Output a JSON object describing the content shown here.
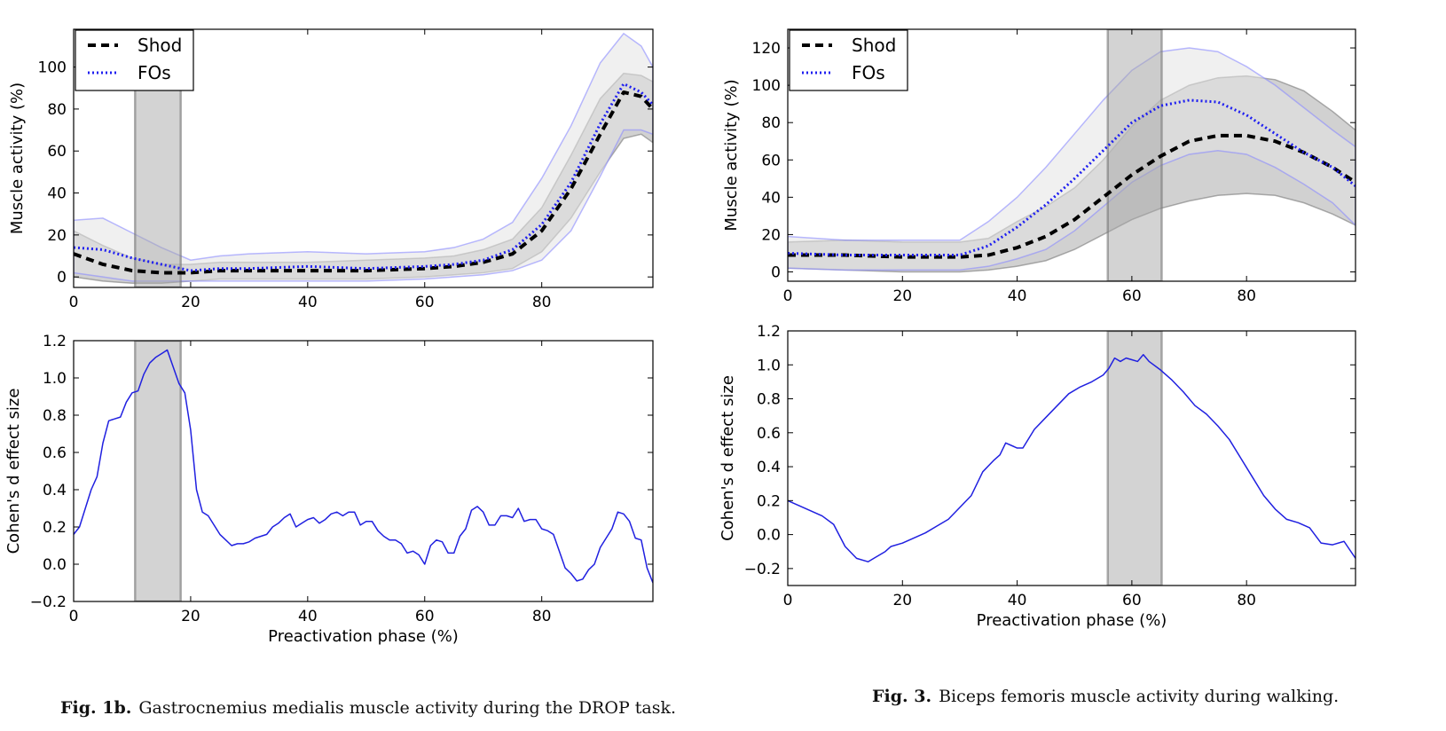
{
  "chart_data": [
    {
      "id": "fig1b-top",
      "type": "line",
      "ylabel": "Muscle activity (%)",
      "xlabel": "",
      "xlim": [
        0,
        99
      ],
      "ylim": [
        -5,
        118
      ],
      "xticks": [
        0,
        20,
        40,
        60,
        80
      ],
      "yticks": [
        0,
        20,
        40,
        60,
        80,
        100
      ],
      "highlight": [
        10.5,
        18.3
      ],
      "legend": {
        "position": "top-left",
        "entries": [
          "Shod",
          "FOs"
        ]
      },
      "series": [
        {
          "name": "Shod",
          "style": "dashed",
          "color": "#000000",
          "x": [
            0,
            5,
            10,
            15,
            20,
            25,
            30,
            40,
            50,
            60,
            65,
            70,
            75,
            80,
            85,
            90,
            94,
            97,
            99
          ],
          "values": [
            11,
            6,
            3,
            2,
            2,
            3,
            3,
            3,
            3,
            4,
            5,
            7,
            11,
            22,
            42,
            68,
            88,
            86,
            80
          ],
          "band_lower": [
            0,
            -2,
            -3,
            -3,
            -2,
            -1,
            -1,
            -1,
            -1,
            0,
            1,
            2,
            4,
            12,
            28,
            50,
            66,
            68,
            64
          ],
          "band_upper": [
            22,
            15,
            9,
            6,
            6,
            7,
            7,
            7,
            8,
            9,
            10,
            13,
            18,
            33,
            58,
            85,
            97,
            96,
            93
          ]
        },
        {
          "name": "FOs",
          "style": "dotted",
          "color": "#1f1ff0",
          "x": [
            0,
            5,
            10,
            15,
            20,
            25,
            30,
            40,
            50,
            60,
            65,
            70,
            75,
            80,
            85,
            90,
            94,
            97,
            99
          ],
          "values": [
            14,
            13,
            9,
            6,
            3,
            4,
            4,
            5,
            4,
            5,
            6,
            8,
            13,
            25,
            45,
            73,
            92,
            88,
            82
          ],
          "band_lower": [
            2,
            0,
            -2,
            -2,
            -2,
            -2,
            -2,
            -2,
            -2,
            -1,
            0,
            1,
            3,
            8,
            22,
            48,
            70,
            70,
            68
          ],
          "band_upper": [
            27,
            28,
            21,
            14,
            8,
            10,
            11,
            12,
            11,
            12,
            14,
            18,
            26,
            47,
            72,
            102,
            116,
            110,
            100
          ]
        }
      ]
    },
    {
      "id": "fig1b-bottom",
      "type": "line",
      "ylabel": "Cohen's d effect size",
      "xlabel": "Preactivation phase (%)",
      "xlim": [
        0,
        99
      ],
      "ylim": [
        -0.2,
        1.2
      ],
      "xticks": [
        0,
        20,
        40,
        60,
        80
      ],
      "yticks": [
        -0.2,
        0.0,
        0.2,
        0.4,
        0.6,
        0.8,
        1.0,
        1.2
      ],
      "highlight": [
        10.5,
        18.3
      ],
      "series": [
        {
          "name": "",
          "style": "solid",
          "color": "#2020e0",
          "x": [
            0,
            1,
            2,
            3,
            4,
            5,
            6,
            7,
            8,
            9,
            10,
            11,
            12,
            13,
            14,
            15,
            16,
            17,
            18,
            19,
            20,
            21,
            22,
            23,
            24,
            25,
            26,
            27,
            28,
            29,
            30,
            31,
            32,
            33,
            34,
            35,
            36,
            37,
            38,
            39,
            40,
            41,
            42,
            43,
            44,
            45,
            46,
            47,
            48,
            49,
            50,
            51,
            52,
            53,
            54,
            55,
            56,
            57,
            58,
            59,
            60,
            61,
            62,
            63,
            64,
            65,
            66,
            67,
            68,
            69,
            70,
            71,
            72,
            73,
            74,
            75,
            76,
            77,
            78,
            79,
            80,
            81,
            82,
            83,
            84,
            85,
            86,
            87,
            88,
            89,
            90,
            91,
            92,
            93,
            94,
            95,
            96,
            97,
            98,
            99
          ],
          "values": [
            0.16,
            0.2,
            0.3,
            0.4,
            0.47,
            0.65,
            0.77,
            0.78,
            0.79,
            0.87,
            0.92,
            0.93,
            1.02,
            1.08,
            1.11,
            1.13,
            1.15,
            1.06,
            0.97,
            0.92,
            0.72,
            0.4,
            0.28,
            0.26,
            0.21,
            0.16,
            0.13,
            0.1,
            0.11,
            0.11,
            0.12,
            0.14,
            0.15,
            0.16,
            0.2,
            0.22,
            0.25,
            0.27,
            0.2,
            0.22,
            0.24,
            0.25,
            0.22,
            0.24,
            0.27,
            0.28,
            0.26,
            0.28,
            0.28,
            0.21,
            0.23,
            0.23,
            0.18,
            0.15,
            0.13,
            0.13,
            0.11,
            0.06,
            0.07,
            0.05,
            0.0,
            0.1,
            0.13,
            0.12,
            0.06,
            0.06,
            0.15,
            0.19,
            0.29,
            0.31,
            0.28,
            0.21,
            0.21,
            0.26,
            0.26,
            0.25,
            0.3,
            0.23,
            0.24,
            0.24,
            0.19,
            0.18,
            0.16,
            0.07,
            -0.02,
            -0.05,
            -0.09,
            -0.08,
            -0.03,
            0.0,
            0.09,
            0.14,
            0.19,
            0.28,
            0.27,
            0.23,
            0.14,
            0.13,
            -0.02,
            -0.1
          ]
        }
      ]
    },
    {
      "id": "fig3-top",
      "type": "line",
      "ylabel": "Muscle activity (%)",
      "xlabel": "",
      "xlim": [
        0,
        99
      ],
      "ylim": [
        -5,
        130
      ],
      "xticks": [
        0,
        20,
        40,
        60,
        80
      ],
      "yticks": [
        0,
        20,
        40,
        60,
        80,
        100,
        120
      ],
      "highlight": [
        55.8,
        65.2
      ],
      "legend": {
        "position": "top-left",
        "entries": [
          "Shod",
          "FOs"
        ]
      },
      "series": [
        {
          "name": "Shod",
          "style": "dashed",
          "color": "#000000",
          "x": [
            0,
            10,
            20,
            30,
            35,
            40,
            45,
            50,
            55,
            60,
            65,
            70,
            75,
            80,
            85,
            90,
            95,
            99
          ],
          "values": [
            9,
            9,
            8,
            8,
            9,
            13,
            19,
            28,
            40,
            52,
            62,
            70,
            73,
            73,
            70,
            64,
            56,
            48
          ],
          "band_lower": [
            2,
            1,
            0,
            0,
            1,
            3,
            6,
            12,
            20,
            28,
            34,
            38,
            41,
            42,
            41,
            37,
            31,
            25
          ],
          "band_upper": [
            16,
            17,
            16,
            16,
            18,
            27,
            35,
            45,
            60,
            78,
            92,
            100,
            104,
            105,
            103,
            97,
            86,
            76
          ]
        },
        {
          "name": "FOs",
          "style": "dotted",
          "color": "#1f1ff0",
          "x": [
            0,
            10,
            20,
            30,
            35,
            40,
            45,
            50,
            55,
            60,
            65,
            70,
            75,
            80,
            85,
            90,
            95,
            99
          ],
          "values": [
            10,
            9,
            9,
            9,
            14,
            24,
            36,
            50,
            65,
            80,
            89,
            92,
            91,
            84,
            74,
            64,
            56,
            46
          ],
          "band_lower": [
            2,
            1,
            1,
            1,
            3,
            7,
            12,
            22,
            35,
            48,
            57,
            63,
            65,
            63,
            56,
            47,
            37,
            25
          ],
          "band_upper": [
            19,
            17,
            17,
            17,
            27,
            40,
            56,
            74,
            92,
            108,
            118,
            120,
            118,
            110,
            100,
            88,
            76,
            67
          ]
        }
      ]
    },
    {
      "id": "fig3-bottom",
      "type": "line",
      "ylabel": "Cohen's d effect size",
      "xlabel": "Preactivation phase (%)",
      "xlim": [
        0,
        99
      ],
      "ylim": [
        -0.3,
        1.2
      ],
      "xticks": [
        0,
        20,
        40,
        60,
        80
      ],
      "yticks": [
        -0.2,
        0.0,
        0.2,
        0.4,
        0.6,
        0.8,
        1.0,
        1.2
      ],
      "highlight": [
        55.8,
        65.2
      ],
      "series": [
        {
          "name": "",
          "style": "solid",
          "color": "#2020e0",
          "x": [
            0,
            2,
            4,
            6,
            8,
            10,
            12,
            14,
            15,
            17,
            18,
            20,
            22,
            24,
            26,
            28,
            30,
            32,
            34,
            36,
            37,
            38,
            40,
            41,
            43,
            45,
            47,
            49,
            51,
            53,
            55,
            56,
            57,
            58,
            59,
            60,
            61,
            62,
            63,
            65,
            67,
            69,
            71,
            73,
            75,
            77,
            79,
            81,
            83,
            85,
            87,
            89,
            91,
            93,
            95,
            97,
            99
          ],
          "values": [
            0.2,
            0.17,
            0.14,
            0.11,
            0.06,
            -0.07,
            -0.14,
            -0.16,
            -0.14,
            -0.1,
            -0.07,
            -0.05,
            -0.02,
            0.01,
            0.05,
            0.09,
            0.16,
            0.23,
            0.37,
            0.44,
            0.47,
            0.54,
            0.51,
            0.51,
            0.62,
            0.69,
            0.76,
            0.83,
            0.87,
            0.9,
            0.94,
            0.98,
            1.04,
            1.02,
            1.04,
            1.03,
            1.02,
            1.06,
            1.02,
            0.97,
            0.91,
            0.84,
            0.76,
            0.71,
            0.64,
            0.56,
            0.45,
            0.34,
            0.23,
            0.15,
            0.09,
            0.07,
            0.04,
            -0.05,
            -0.06,
            -0.04,
            -0.14
          ]
        }
      ]
    }
  ],
  "captions": {
    "left": {
      "label": "Fig. 1b.",
      "text": "Gastrocnemius medialis muscle activity during the DROP task."
    },
    "right": {
      "label": "Fig. 3.",
      "text": "Biceps femoris muscle activity during walking."
    }
  }
}
